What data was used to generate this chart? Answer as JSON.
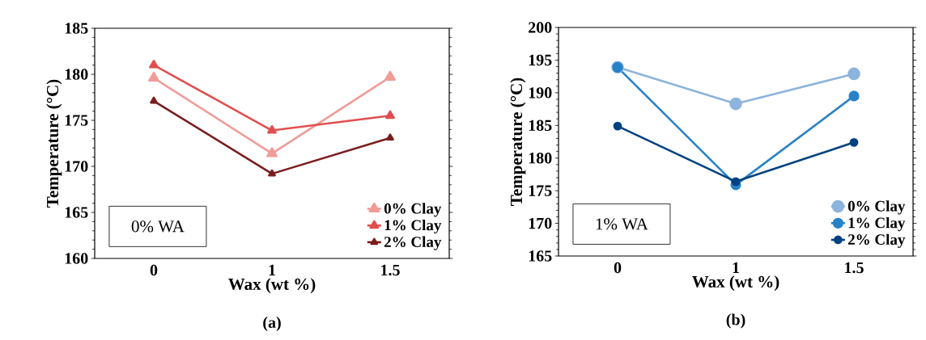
{
  "chart_data": [
    {
      "type": "line",
      "xlabel": "Wax (wt %)",
      "ylabel": "Temperature (°C)",
      "categories": [
        "0",
        "1",
        "1.5"
      ],
      "ylim": [
        160,
        185
      ],
      "yticks": [
        160,
        165,
        170,
        175,
        180,
        185
      ],
      "marker": "triangle",
      "legend": "bottom right",
      "grid": false,
      "annotations": [
        "0% WA",
        "(a)"
      ],
      "series": [
        {
          "name": "0% Clay",
          "color": "#f09c98",
          "values": [
            179.6,
            171.4,
            179.7
          ]
        },
        {
          "name": "1% Clay",
          "color": "#e05050",
          "values": [
            181.0,
            173.9,
            175.5
          ]
        },
        {
          "name": "2% Clay",
          "color": "#7a1e1e",
          "values": [
            177.1,
            169.2,
            173.1
          ]
        }
      ]
    },
    {
      "type": "line",
      "xlabel": "Wax (wt %)",
      "ylabel": "Temperature (°C)",
      "categories": [
        "0",
        "1",
        "1.5"
      ],
      "ylim": [
        165,
        200
      ],
      "yticks": [
        165,
        170,
        175,
        180,
        185,
        190,
        195,
        200
      ],
      "marker": "circle",
      "legend": "bottom right",
      "grid": false,
      "annotations": [
        "1% WA",
        "(b)"
      ],
      "series": [
        {
          "name": "0% Clay",
          "color": "#8cb4dc",
          "values": [
            193.9,
            188.3,
            192.9
          ]
        },
        {
          "name": "1% Clay",
          "color": "#2882c8",
          "values": [
            193.9,
            175.9,
            189.5
          ]
        },
        {
          "name": "2% Clay",
          "color": "#004280",
          "values": [
            184.9,
            176.4,
            182.4
          ]
        }
      ]
    }
  ]
}
